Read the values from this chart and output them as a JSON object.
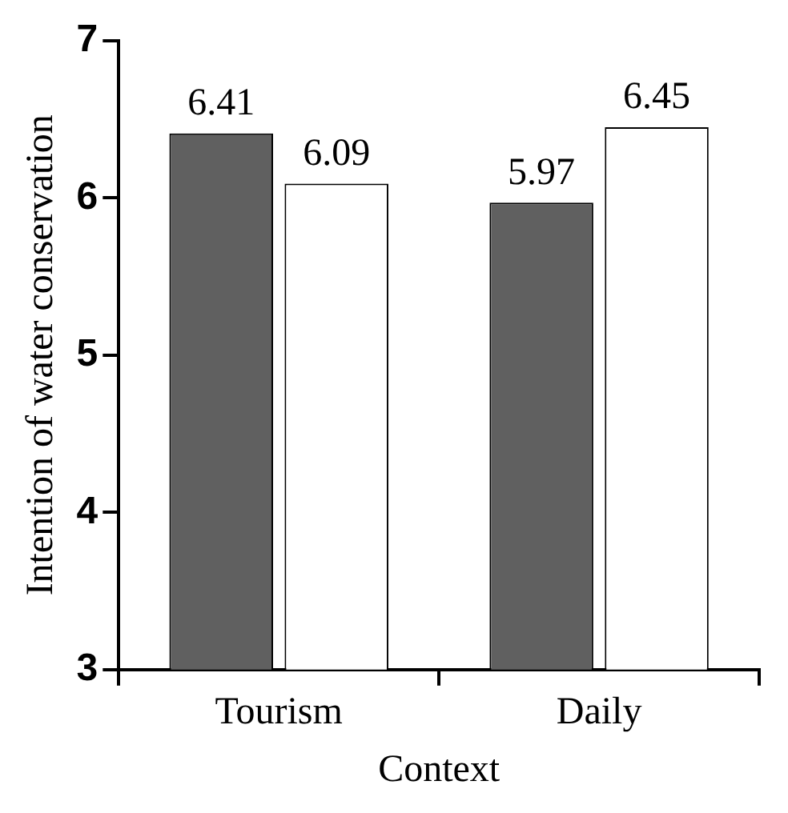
{
  "chart_data": {
    "type": "bar",
    "xlabel": "Context",
    "ylabel": "Intention of water conservation",
    "categories": [
      "Tourism",
      "Daily"
    ],
    "series": [
      {
        "color": "#606060",
        "values": [
          6.41,
          5.97
        ]
      },
      {
        "color": "#ffffff",
        "values": [
          6.09,
          6.45
        ]
      }
    ],
    "ylim": [
      3,
      7
    ],
    "yticks": [
      3,
      4,
      5,
      6,
      7
    ],
    "data_labels": true,
    "legend": false
  }
}
